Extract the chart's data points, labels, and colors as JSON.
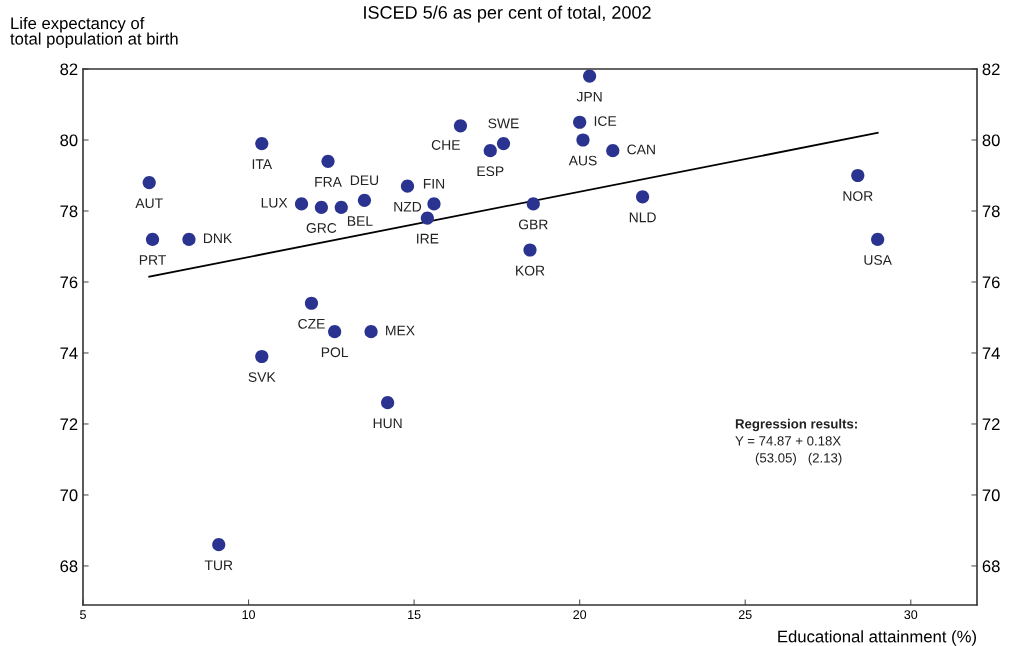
{
  "chart_data": {
    "type": "scatter",
    "title": "ISCED 5/6 as per cent of total, 2002",
    "xlabel": "Educational attainment (%)",
    "ylabel": "Life expectancy of\ntotal population at birth",
    "series": [
      {
        "color": "#2b3390",
        "marker": "circle",
        "x": [
          7.0,
          7.1,
          8.2,
          10.4,
          12.4,
          11.6,
          12.2,
          12.8,
          13.5,
          15.6,
          14.8,
          15.4,
          16.4,
          17.3,
          17.7,
          20.3,
          20.0,
          20.1,
          21.0,
          18.6,
          18.5,
          21.9,
          28.4,
          29.0,
          11.9,
          12.6,
          13.7,
          10.4,
          14.2,
          9.1
        ],
        "values": [
          78.8,
          77.2,
          77.2,
          79.9,
          79.4,
          78.2,
          78.1,
          78.1,
          78.3,
          78.2,
          78.7,
          77.8,
          80.4,
          79.7,
          79.9,
          81.8,
          80.5,
          80.0,
          79.7,
          78.2,
          76.9,
          78.4,
          79.0,
          77.2,
          75.4,
          74.6,
          74.6,
          73.9,
          72.6,
          68.6
        ]
      },
      {
        "type": "line",
        "color": "#000000",
        "line_style": "solid",
        "x": [
          7.0,
          29.0
        ],
        "values": [
          76.15,
          80.2
        ]
      }
    ],
    "annotations": [
      {
        "text": "AUT",
        "x": 7.0,
        "y": 78.8
      },
      {
        "text": "PRT",
        "x": 7.1,
        "y": 77.2
      },
      {
        "text": "DNK",
        "x": 8.2,
        "y": 77.2
      },
      {
        "text": "ITA",
        "x": 10.4,
        "y": 79.9
      },
      {
        "text": "FRA",
        "x": 12.4,
        "y": 79.4
      },
      {
        "text": "LUX",
        "x": 11.6,
        "y": 78.2
      },
      {
        "text": "GRC",
        "x": 12.2,
        "y": 78.1
      },
      {
        "text": "BEL",
        "x": 12.8,
        "y": 78.1
      },
      {
        "text": "DEU",
        "x": 13.5,
        "y": 78.3
      },
      {
        "text": "FIN",
        "x": 15.6,
        "y": 78.2
      },
      {
        "text": "NZD",
        "x": 14.8,
        "y": 78.7
      },
      {
        "text": "IRE",
        "x": 15.4,
        "y": 77.8
      },
      {
        "text": "CHE",
        "x": 16.4,
        "y": 80.4
      },
      {
        "text": "ESP",
        "x": 17.3,
        "y": 79.7
      },
      {
        "text": "SWE",
        "x": 17.7,
        "y": 79.9
      },
      {
        "text": "JPN",
        "x": 20.3,
        "y": 81.8
      },
      {
        "text": "ICE",
        "x": 20.0,
        "y": 80.5
      },
      {
        "text": "AUS",
        "x": 20.1,
        "y": 80.0
      },
      {
        "text": "CAN",
        "x": 21.0,
        "y": 79.7
      },
      {
        "text": "GBR",
        "x": 18.6,
        "y": 78.2
      },
      {
        "text": "KOR",
        "x": 18.5,
        "y": 76.9
      },
      {
        "text": "NLD",
        "x": 21.9,
        "y": 78.4
      },
      {
        "text": "NOR",
        "x": 28.4,
        "y": 79.0
      },
      {
        "text": "USA",
        "x": 29.0,
        "y": 77.2
      },
      {
        "text": "CZE",
        "x": 11.9,
        "y": 75.4
      },
      {
        "text": "POL",
        "x": 12.6,
        "y": 74.6
      },
      {
        "text": "MEX",
        "x": 13.7,
        "y": 74.6
      },
      {
        "text": "SVK",
        "x": 10.4,
        "y": 73.9
      },
      {
        "text": "HUN",
        "x": 14.2,
        "y": 72.6
      },
      {
        "text": "TUR",
        "x": 9.1,
        "y": 68.6
      },
      "Regression results:",
      "Y = 74.87 + 0.18X",
      "(53.05)   (2.13)"
    ],
    "xlim": [
      5,
      32
    ],
    "xticks": [
      5,
      10,
      15,
      20,
      25,
      30
    ],
    "ylim": [
      66.9,
      82
    ],
    "yticks": [
      68,
      70,
      72,
      74,
      76,
      78,
      80,
      82
    ],
    "y2lim": [
      66.9,
      82
    ],
    "y2ticks": [
      68,
      70,
      72,
      74,
      76,
      78,
      80,
      82
    ],
    "grid": false,
    "legend": false
  }
}
